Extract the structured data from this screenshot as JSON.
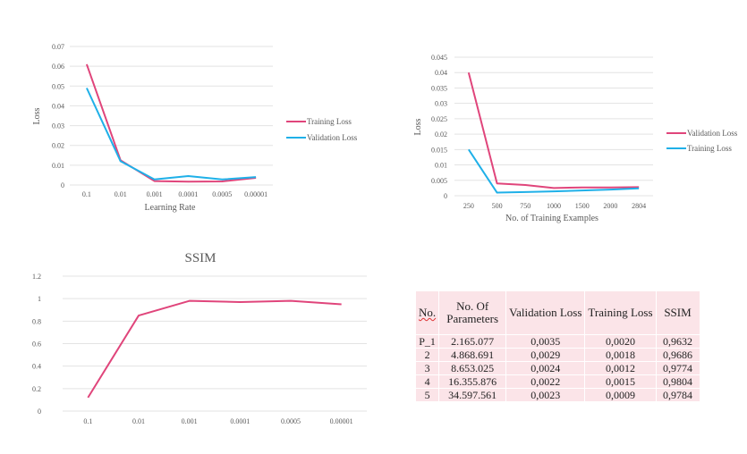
{
  "colors": {
    "pink": "#e0457b",
    "blue": "#1fb0e8",
    "grid": "#e3e3e3"
  },
  "chart_data": [
    {
      "type": "line",
      "title": "",
      "xlabel": "Learning Rate",
      "ylabel": "Loss",
      "ylim": [
        0,
        0.07
      ],
      "yticks": [
        "0",
        "0.01",
        "0.02",
        "0.03",
        "0.04",
        "0.05",
        "0.06",
        "0.07"
      ],
      "categories": [
        "0.1",
        "0.01",
        "0.001",
        "0.0001",
        "0.0005",
        "0.00001"
      ],
      "legend": "right",
      "grid": true,
      "series": [
        {
          "name": "Training Loss",
          "color": "#e0457b",
          "values": [
            0.061,
            0.0125,
            0.002,
            0.0017,
            0.0018,
            0.0036
          ]
        },
        {
          "name": "Validation Loss",
          "color": "#1fb0e8",
          "values": [
            0.049,
            0.012,
            0.0028,
            0.0045,
            0.0028,
            0.004
          ]
        }
      ]
    },
    {
      "type": "line",
      "title": "",
      "xlabel": "No. of Training Examples",
      "ylabel": "Loss",
      "ylim": [
        0,
        0.045
      ],
      "yticks": [
        "0",
        "0.005",
        "0.01",
        "0.015",
        "0.02",
        "0.025",
        "0.03",
        "0.035",
        "0.04",
        "0.045"
      ],
      "categories": [
        "250",
        "500",
        "750",
        "1000",
        "1500",
        "2000",
        "2804"
      ],
      "legend": "right",
      "grid": true,
      "series": [
        {
          "name": "Validation Loss",
          "color": "#e0457b",
          "values": [
            0.04,
            0.004,
            0.0035,
            0.0025,
            0.0027,
            0.0027,
            0.0028
          ]
        },
        {
          "name": "Training Loss",
          "color": "#1fb0e8",
          "values": [
            0.015,
            0.001,
            0.0012,
            0.0014,
            0.0017,
            0.002,
            0.0024
          ]
        }
      ]
    },
    {
      "type": "line",
      "title": "SSIM",
      "xlabel": "",
      "ylabel": "",
      "ylim": [
        0,
        1.2
      ],
      "yticks": [
        "0",
        "0.2",
        "0.4",
        "0.6",
        "0.8",
        "1",
        "1.2"
      ],
      "categories": [
        "0.1",
        "0.01",
        "0.001",
        "0.0001",
        "0.0005",
        "0.00001"
      ],
      "legend": "none",
      "grid": true,
      "series": [
        {
          "color": "#e0457b",
          "values": [
            0.12,
            0.85,
            0.98,
            0.97,
            0.98,
            0.95
          ]
        }
      ]
    },
    {
      "type": "table",
      "headers": [
        "No.",
        "No. Of Parameters",
        "Validation Loss",
        "Training Loss",
        "SSIM"
      ],
      "rows": [
        [
          "P_1",
          "2.165.077",
          "0,0035",
          "0,0020",
          "0,9632"
        ],
        [
          "2",
          "4.868.691",
          "0,0029",
          "0,0018",
          "0,9686"
        ],
        [
          "3",
          "8.653.025",
          "0,0024",
          "0,0012",
          "0,9774"
        ],
        [
          "4",
          "16.355.876",
          "0,0022",
          "0,0015",
          "0,9804"
        ],
        [
          "5",
          "34.597.561",
          "0,0023",
          "0,0009",
          "0,9784"
        ]
      ]
    }
  ]
}
